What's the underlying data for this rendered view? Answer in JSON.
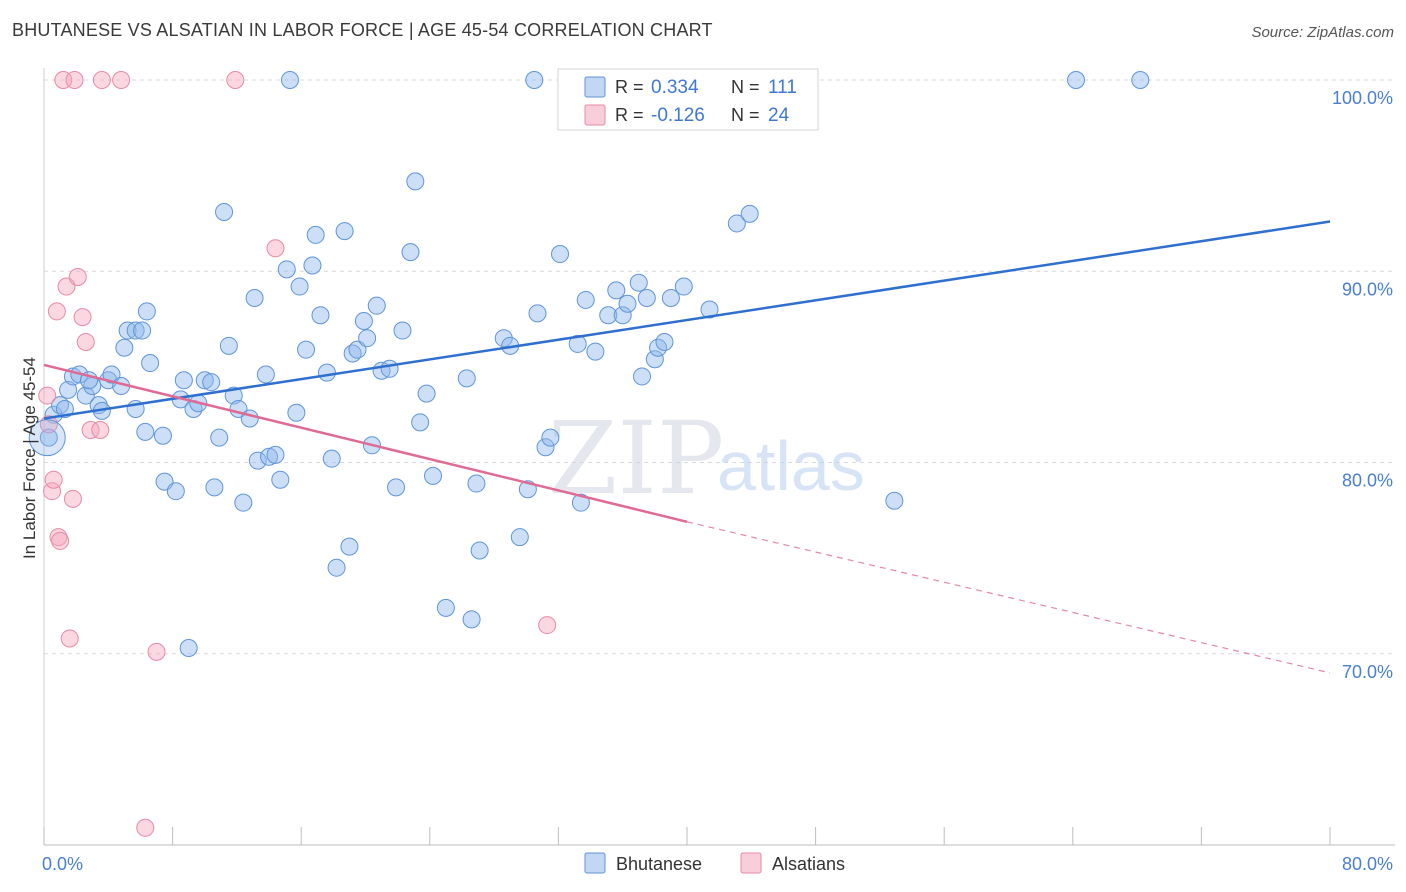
{
  "title": "BHUTANESE VS ALSATIAN IN LABOR FORCE | AGE 45-54 CORRELATION CHART",
  "source": "Source: ZipAtlas.com",
  "chart_data": {
    "type": "scatter",
    "xlabel": "",
    "ylabel": "In Labor Force | Age 45-54",
    "xlim": [
      0,
      80
    ],
    "ylim": [
      60,
      100
    ],
    "x_tick_labels": [
      "0.0%",
      "80.0%"
    ],
    "y_ticks": [
      70,
      80,
      90,
      100
    ],
    "y_tick_labels": [
      "70.0%",
      "80.0%",
      "90.0%",
      "100.0%"
    ],
    "legend": [
      {
        "name": "Bhutanese",
        "r_label": "R =",
        "r_value": "0.334",
        "n_label": "N =",
        "n_value": "111",
        "color": "#8fb7ea"
      },
      {
        "name": "Alsatians",
        "r_label": "R =",
        "r_value": "-0.126",
        "n_label": "N =",
        "n_value": "24",
        "color": "#f4a6bd"
      }
    ],
    "watermark": {
      "zip": "ZIP",
      "atlas": "atlas"
    },
    "series": [
      {
        "name": "Bhutanese",
        "color": "#8fb7ea",
        "stroke": "#5f95da",
        "trend": {
          "x0": 0,
          "y0": 82.3,
          "x1": 80,
          "y1": 92.6,
          "color": "#2f6fd0"
        },
        "points": [
          [
            0.3,
            81.3
          ],
          [
            0.6,
            82.5
          ],
          [
            1.0,
            83.0
          ],
          [
            1.3,
            82.8
          ],
          [
            1.5,
            83.8
          ],
          [
            1.8,
            84.5
          ],
          [
            2.2,
            84.6
          ],
          [
            2.6,
            83.5
          ],
          [
            3.0,
            84.0
          ],
          [
            3.4,
            83.0
          ],
          [
            3.6,
            82.7
          ],
          [
            4.0,
            84.3
          ],
          [
            4.2,
            84.6
          ],
          [
            4.8,
            84.0
          ],
          [
            5.0,
            86.0
          ],
          [
            5.2,
            86.9
          ],
          [
            5.7,
            86.9
          ],
          [
            6.1,
            86.9
          ],
          [
            6.4,
            87.9
          ],
          [
            6.3,
            81.6
          ],
          [
            7.4,
            81.4
          ],
          [
            7.5,
            79.0
          ],
          [
            8.2,
            78.5
          ],
          [
            8.5,
            83.3
          ],
          [
            8.7,
            84.3
          ],
          [
            9.3,
            82.8
          ],
          [
            9.6,
            83.1
          ],
          [
            10.0,
            84.3
          ],
          [
            10.4,
            84.2
          ],
          [
            10.6,
            78.7
          ],
          [
            10.9,
            81.3
          ],
          [
            11.5,
            86.1
          ],
          [
            11.8,
            83.5
          ],
          [
            12.1,
            82.8
          ],
          [
            12.4,
            77.9
          ],
          [
            12.8,
            82.3
          ],
          [
            13.1,
            88.6
          ],
          [
            13.3,
            80.1
          ],
          [
            13.8,
            84.6
          ],
          [
            14.0,
            80.3
          ],
          [
            14.4,
            80.4
          ],
          [
            14.7,
            79.1
          ],
          [
            15.1,
            90.1
          ],
          [
            15.7,
            82.6
          ],
          [
            15.9,
            89.2
          ],
          [
            16.3,
            85.9
          ],
          [
            16.7,
            90.3
          ],
          [
            16.9,
            91.9
          ],
          [
            17.2,
            87.7
          ],
          [
            17.6,
            84.7
          ],
          [
            17.9,
            80.2
          ],
          [
            18.2,
            74.5
          ],
          [
            18.7,
            92.1
          ],
          [
            19.0,
            75.6
          ],
          [
            19.2,
            85.7
          ],
          [
            19.5,
            85.9
          ],
          [
            19.9,
            87.4
          ],
          [
            20.1,
            86.5
          ],
          [
            20.4,
            80.9
          ],
          [
            20.7,
            88.2
          ],
          [
            21.0,
            84.8
          ],
          [
            21.5,
            84.9
          ],
          [
            21.9,
            78.7
          ],
          [
            22.3,
            86.9
          ],
          [
            22.8,
            91.0
          ],
          [
            23.1,
            94.7
          ],
          [
            23.4,
            82.1
          ],
          [
            23.8,
            83.6
          ],
          [
            24.2,
            79.3
          ],
          [
            25.0,
            72.4
          ],
          [
            26.3,
            84.4
          ],
          [
            26.6,
            71.8
          ],
          [
            26.9,
            78.9
          ],
          [
            27.1,
            75.4
          ],
          [
            28.6,
            86.5
          ],
          [
            29.0,
            86.1
          ],
          [
            29.6,
            76.1
          ],
          [
            30.1,
            78.6
          ],
          [
            30.5,
            100.0
          ],
          [
            30.7,
            87.8
          ],
          [
            31.2,
            80.8
          ],
          [
            31.5,
            81.3
          ],
          [
            32.1,
            90.9
          ],
          [
            33.2,
            86.2
          ],
          [
            33.4,
            77.9
          ],
          [
            33.7,
            88.5
          ],
          [
            34.3,
            85.8
          ],
          [
            35.1,
            87.7
          ],
          [
            35.6,
            89.0
          ],
          [
            36.0,
            87.7
          ],
          [
            36.3,
            88.3
          ],
          [
            37.0,
            89.4
          ],
          [
            37.2,
            84.5
          ],
          [
            37.5,
            88.6
          ],
          [
            38.0,
            85.4
          ],
          [
            38.2,
            86.0
          ],
          [
            38.6,
            86.3
          ],
          [
            39.0,
            88.6
          ],
          [
            39.8,
            89.2
          ],
          [
            41.4,
            88.0
          ],
          [
            43.1,
            92.5
          ],
          [
            43.9,
            93.0
          ],
          [
            52.9,
            78.0
          ],
          [
            64.2,
            100.0
          ],
          [
            68.2,
            100.0
          ],
          [
            15.3,
            100.0
          ],
          [
            5.7,
            82.8
          ],
          [
            6.6,
            85.2
          ],
          [
            2.8,
            84.3
          ],
          [
            9.0,
            70.3
          ],
          [
            11.2,
            93.1
          ]
        ]
      },
      {
        "name": "Alsatians",
        "color": "#f4a6bd",
        "stroke": "#e88aa7",
        "trend": {
          "x0": 0,
          "y0": 85.1,
          "x1": 40,
          "y1": 76.9,
          "x2": 80,
          "y2": 69.0,
          "color": "#e06a94"
        },
        "points": [
          [
            0.2,
            83.5
          ],
          [
            0.3,
            82.0
          ],
          [
            0.5,
            78.5
          ],
          [
            0.6,
            79.1
          ],
          [
            0.8,
            87.9
          ],
          [
            0.9,
            76.1
          ],
          [
            1.0,
            75.9
          ],
          [
            1.2,
            100.0
          ],
          [
            1.4,
            89.2
          ],
          [
            1.6,
            70.8
          ],
          [
            1.8,
            78.1
          ],
          [
            1.9,
            100.0
          ],
          [
            2.1,
            89.7
          ],
          [
            2.4,
            87.6
          ],
          [
            2.6,
            86.3
          ],
          [
            2.9,
            81.7
          ],
          [
            3.5,
            81.7
          ],
          [
            3.6,
            100.0
          ],
          [
            4.8,
            100.0
          ],
          [
            6.3,
            60.9
          ],
          [
            7.0,
            70.1
          ],
          [
            11.9,
            100.0
          ],
          [
            14.4,
            91.2
          ],
          [
            31.3,
            71.5
          ]
        ]
      }
    ]
  }
}
